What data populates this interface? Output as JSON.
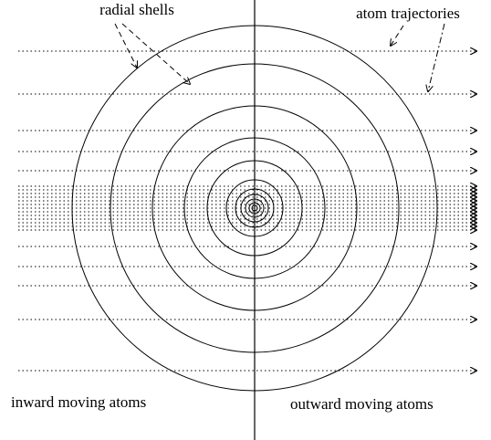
{
  "labels": {
    "radial_shells": "radial shells",
    "atom_trajectories": "atom trajectories",
    "inward": "inward moving atoms",
    "outward": "outward moving atoms"
  }
}
